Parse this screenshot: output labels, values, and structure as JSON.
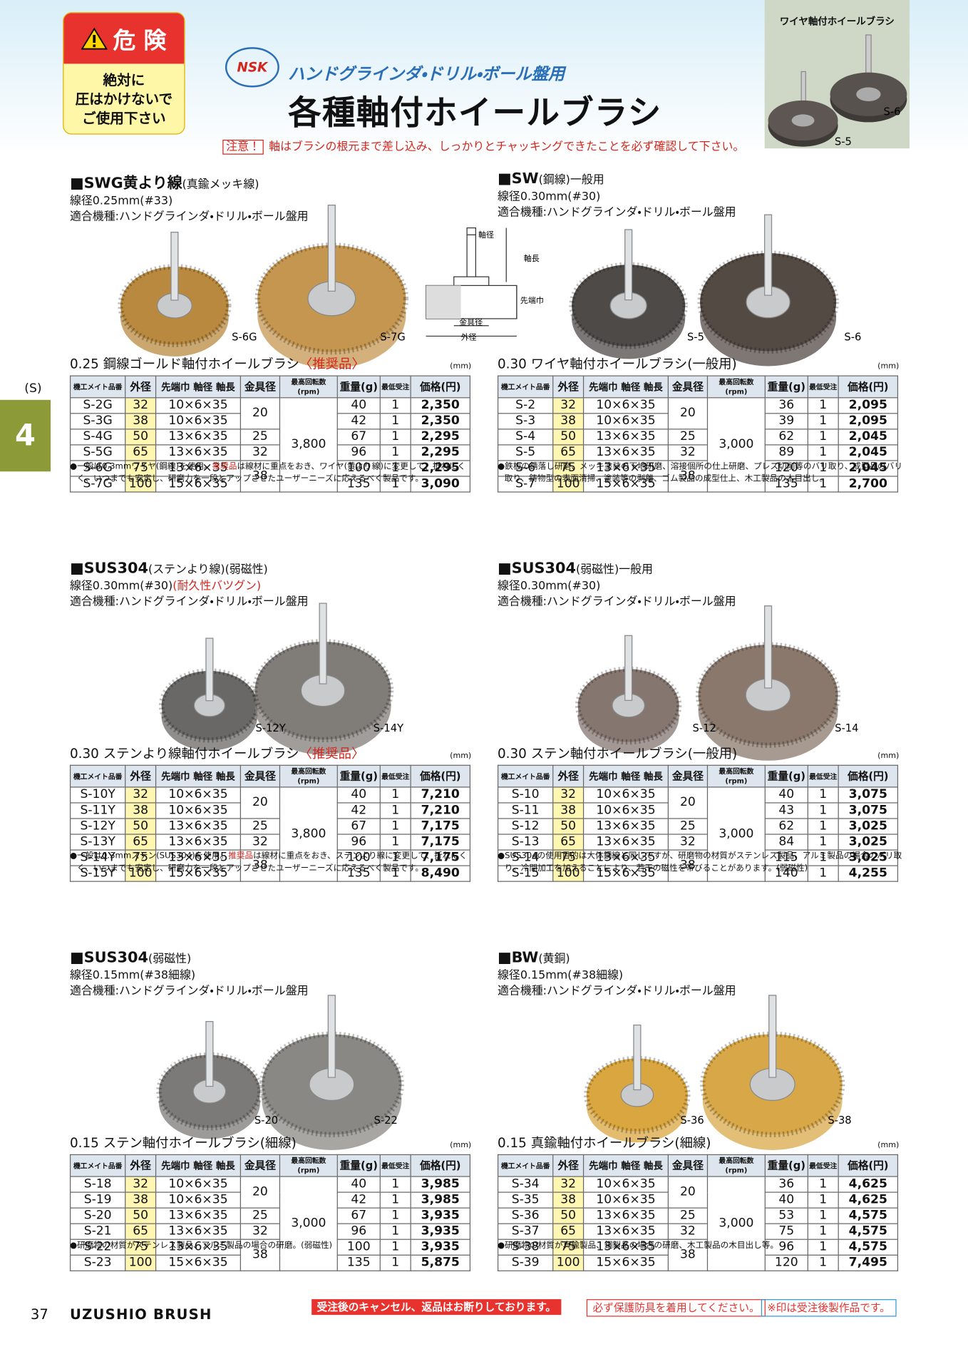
{
  "header": {
    "danger_label": "危 険",
    "warning": [
      "絶対に",
      "圧はかけないで",
      "ご使用下さい"
    ],
    "logo": "NSK",
    "subtitle": "ハンドグラインダ・ドリル・ボール盤用",
    "title": "各種軸付ホイールブラシ",
    "notice_label": "注意！",
    "notice_text": "軸はブラシの根元まで差し込み、しっかりとチャッキングできたことを必ず確認して下さい。"
  },
  "product_photo": {
    "caption": "ワイヤ軸付ホイールブラシ",
    "labels": [
      "S-6",
      "S-5"
    ]
  },
  "side": {
    "section_code": "(S)",
    "chapter": "4"
  },
  "table_headers": [
    "機工メイト品番",
    "外径",
    "先端巾 軸径 軸長",
    "金具径",
    "最高回転数(rpm)",
    "重量(g)",
    "最低受注",
    "価格(円)"
  ],
  "sections": [
    {
      "heading_name": "■SWG黄より線",
      "heading_note": "(真鍮メッキ線)",
      "spec": [
        "線径0.25mm(#33)"
      ],
      "usage": "適合機種:ハンドグラインダ・ドリル・ボール盤用",
      "photo_labels": [
        "S-6G",
        "S-7G"
      ],
      "table_title": "0.25 鋼線ゴールド軸付ホイールブラシ",
      "table_tag": "〈推奨品〉",
      "unit": "(mm)",
      "fittings": [
        "20",
        "25",
        "32",
        "38"
      ],
      "rpm": "3,800",
      "rows": [
        [
          "S-2G",
          "32",
          "10×6×35",
          "40",
          "1",
          "2,350"
        ],
        [
          "S-3G",
          "38",
          "10×6×35",
          "42",
          "1",
          "2,350"
        ],
        [
          "S-4G",
          "50",
          "13×6×35",
          "67",
          "1",
          "2,295"
        ],
        [
          "S-5G",
          "65",
          "13×6×35",
          "96",
          "1",
          "2,295"
        ],
        [
          "S-6G",
          "75",
          "13×6×35",
          "100",
          "1",
          "2,295"
        ],
        [
          "S-7G",
          "100",
          "15×6×35",
          "135",
          "1",
          "3,090"
        ]
      ],
      "note": [
        "●一般は0.3mmワイヤ(鋼線)を使用。",
        "推奨品",
        "は線材に重点をおき、ワイヤ(黄より線)に変更して、折れにくく、いつまでも安定し、研磨力を一段とアップさせたユーザーニーズに応えるべく製品です。"
      ]
    },
    {
      "heading_name": "■SW",
      "heading_note": "(鋼線)一般用",
      "spec": [
        "線径0.30mm(#30)"
      ],
      "usage": "適合機種:ハンドグラインダ・ドリル・ボール盤用",
      "photo_labels": [
        "S-5",
        "S-6"
      ],
      "diagram": [
        "軸径",
        "軸長",
        "先端巾",
        "金具径",
        "外径"
      ],
      "table_title": "0.30 ワイヤ軸付ホイールブラシ",
      "table_tag": "(一般用)",
      "unit": "(mm)",
      "fittings": [
        "20",
        "25",
        "32",
        "38"
      ],
      "rpm": "3,000",
      "rows": [
        [
          "S-2",
          "32",
          "10×6×35",
          "36",
          "1",
          "2,095"
        ],
        [
          "S-3",
          "38",
          "10×6×35",
          "39",
          "1",
          "2,095"
        ],
        [
          "S-4",
          "50",
          "13×6×35",
          "62",
          "1",
          "2,045"
        ],
        [
          "S-5",
          "65",
          "13×6×35",
          "89",
          "1",
          "2,045"
        ],
        [
          "S-6",
          "75",
          "13×6×35",
          "120",
          "1",
          "2,045"
        ],
        [
          "S-7",
          "100",
          "15×6×35",
          "135",
          "1",
          "2,700"
        ]
      ],
      "note": [
        "●鉄板の錆落し研磨、メッキ塗装の下地研磨、溶接個所の仕上研磨、プレス切削等のバリ取り、成型品のバリ取り、鋳物型の表面清掃、塗装等の剥離、ゴム製品の成型仕上、木工製品の木目出し。"
      ]
    },
    {
      "heading_name": "■SUS304",
      "heading_note": "(ステンより線)(弱磁性)",
      "spec": [
        "線径0.30mm(#30)",
        "(耐久性バツグン)"
      ],
      "usage": "適合機種:ハンドグラインダ・ドリル・ボール盤用",
      "photo_labels": [
        "S-12Y",
        "S-14Y"
      ],
      "table_title": "0.30 ステンより線軸付ホイールブラシ",
      "table_tag": "〈推奨品〉",
      "unit": "(mm)",
      "fittings": [
        "20",
        "25",
        "32",
        "38"
      ],
      "rpm": "3,800",
      "rows": [
        [
          "S-10Y",
          "32",
          "10×6×35",
          "40",
          "1",
          "7,210"
        ],
        [
          "S-11Y",
          "38",
          "10×6×35",
          "42",
          "1",
          "7,210"
        ],
        [
          "S-12Y",
          "50",
          "13×6×35",
          "67",
          "1",
          "7,175"
        ],
        [
          "S-13Y",
          "65",
          "13×6×35",
          "96",
          "1",
          "7,175"
        ],
        [
          "S-14Y",
          "75",
          "13×6×35",
          "100",
          "1",
          "7,175"
        ],
        [
          "S-15Y",
          "100",
          "15×6×35",
          "135",
          "1",
          "8,490"
        ]
      ],
      "note": [
        "●一般は0.3mmステン(SUS304)を使用。",
        "推奨品",
        "は線材に重点をおき、ステンより線に変更して、折れにくく、いつまでも安定し、研磨力を一段とアップさせたユーザーニーズに応えるべく製品です。"
      ]
    },
    {
      "heading_name": "■SUS304",
      "heading_note": "(弱磁性)一般用",
      "spec": [
        "線径0.30mm(#30)"
      ],
      "usage": "適合機種:ハンドグラインダ・ドリル・ボール盤用",
      "photo_labels": [
        "S-12",
        "S-14"
      ],
      "table_title": "0.30 ステン軸付ホイールブラシ",
      "table_tag": "(一般用)",
      "unit": "(mm)",
      "fittings": [
        "20",
        "25",
        "32",
        "38"
      ],
      "rpm": "3,000",
      "rows": [
        [
          "S-10",
          "32",
          "10×6×35",
          "40",
          "1",
          "3,075"
        ],
        [
          "S-11",
          "38",
          "10×6×35",
          "43",
          "1",
          "3,075"
        ],
        [
          "S-12",
          "50",
          "13×6×35",
          "62",
          "1",
          "3,025"
        ],
        [
          "S-13",
          "65",
          "13×6×35",
          "84",
          "1",
          "3,025"
        ],
        [
          "S-14",
          "75",
          "13×6×35",
          "115",
          "1",
          "3,025"
        ],
        [
          "S-15",
          "100",
          "15×6×35",
          "140",
          "1",
          "4,255"
        ]
      ],
      "note": [
        "●SUS304の使用目的は大体鋼線と同じですが、研磨物の材質がステンレス製品、アルミ製品の場合のバリ取り。冷間加工を加えることにより、若干の磁性を帯びることがあります。(弱磁性)"
      ]
    },
    {
      "heading_name": "■SUS304",
      "heading_note": "(弱磁性)",
      "spec": [
        "線径0.15mm(#38細線)"
      ],
      "usage": "適合機種:ハンドグラインダ・ドリル・ボール盤用",
      "photo_labels": [
        "S-20",
        "S-22"
      ],
      "table_title": "0.15 ステン軸付ホイールブラシ",
      "table_tag": "(細線)",
      "unit": "(mm)",
      "fittings": [
        "20",
        "25",
        "32",
        "38"
      ],
      "rpm": "3,000",
      "rows": [
        [
          "S-18",
          "32",
          "10×6×35",
          "40",
          "1",
          "3,985"
        ],
        [
          "S-19",
          "38",
          "10×6×35",
          "42",
          "1",
          "3,985"
        ],
        [
          "S-20",
          "50",
          "13×6×35",
          "67",
          "1",
          "3,935"
        ],
        [
          "S-21",
          "65",
          "13×6×35",
          "96",
          "1",
          "3,935"
        ],
        [
          "S-22",
          "75",
          "13×6×35",
          "100",
          "1",
          "3,935"
        ],
        [
          "S-23",
          "100",
          "15×6×35",
          "135",
          "1",
          "5,875"
        ]
      ],
      "note": [
        "●研磨物の材質がステンレス製品、アルミ製品の場合の研磨。(弱磁性)"
      ]
    },
    {
      "heading_name": "■BW",
      "heading_note": "(黄銅)",
      "spec": [
        "線径0.15mm(#38細線)"
      ],
      "usage": "適合機種:ハンドグラインダ・ドリル・ボール盤用",
      "photo_labels": [
        "S-36",
        "S-38"
      ],
      "table_title": "0.15 真鍮軸付ホイールブラシ",
      "table_tag": "(細線)",
      "unit": "(mm)",
      "fittings": [
        "20",
        "25",
        "32",
        "38"
      ],
      "rpm": "3,000",
      "rows": [
        [
          "S-34",
          "32",
          "10×6×35",
          "36",
          "1",
          "4,625"
        ],
        [
          "S-35",
          "38",
          "10×6×35",
          "40",
          "1",
          "4,625"
        ],
        [
          "S-36",
          "50",
          "13×6×35",
          "53",
          "1",
          "4,575"
        ],
        [
          "S-37",
          "65",
          "13×6×35",
          "75",
          "1",
          "4,575"
        ],
        [
          "S-38",
          "75",
          "13×6×35",
          "96",
          "1",
          "4,575"
        ],
        [
          "S-39",
          "100",
          "15×6×35",
          "120",
          "1",
          "7,495"
        ]
      ],
      "note": [
        "●研磨物の材質が真鍮製品、銅製品の場合の研磨、木工製品の木目出し等。"
      ]
    }
  ],
  "footer": {
    "page": "37",
    "brand": "UZUSHIO BRUSH",
    "notices": [
      "受注後のキャンセル、返品はお断りしております。",
      "必ず保護防具を着用してください。",
      "※印は受注後製作品です。"
    ]
  }
}
